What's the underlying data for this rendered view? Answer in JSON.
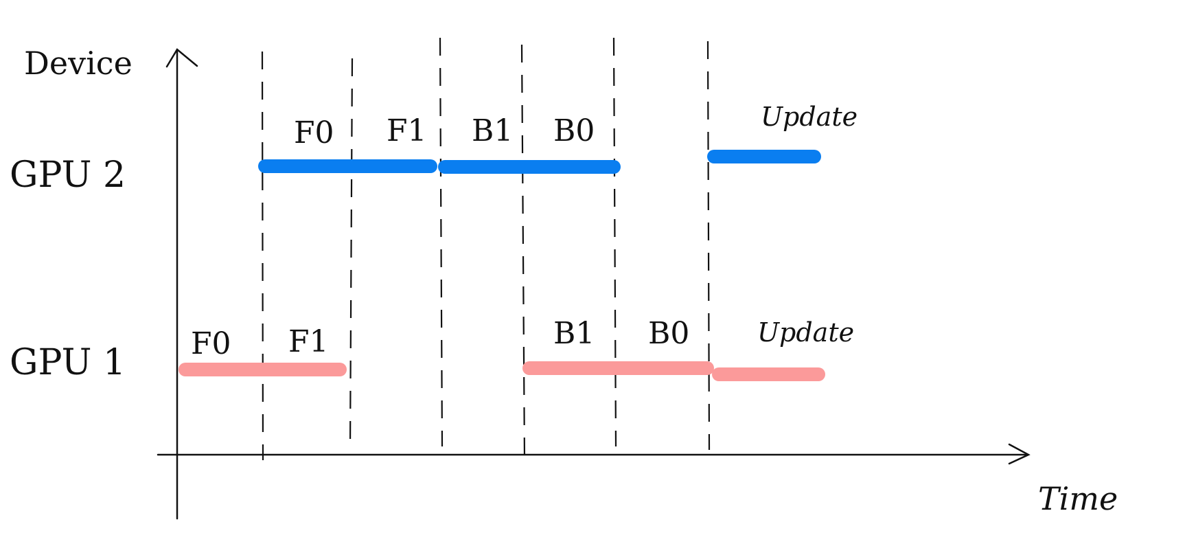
{
  "axes": {
    "y_label": "Device",
    "x_label": "Time"
  },
  "devices": [
    {
      "label": "GPU 2"
    },
    {
      "label": "GPU 1"
    }
  ],
  "colors": {
    "gpu2": "#0a7ef0",
    "gpu1": "#fb9a9a",
    "ink": "#111111"
  },
  "gpu2": {
    "tasks": [
      "F0",
      "F1",
      "B1",
      "B0",
      "Update"
    ]
  },
  "gpu1": {
    "tasks": [
      "F0",
      "F1",
      "B1",
      "B0",
      "Update"
    ]
  }
}
